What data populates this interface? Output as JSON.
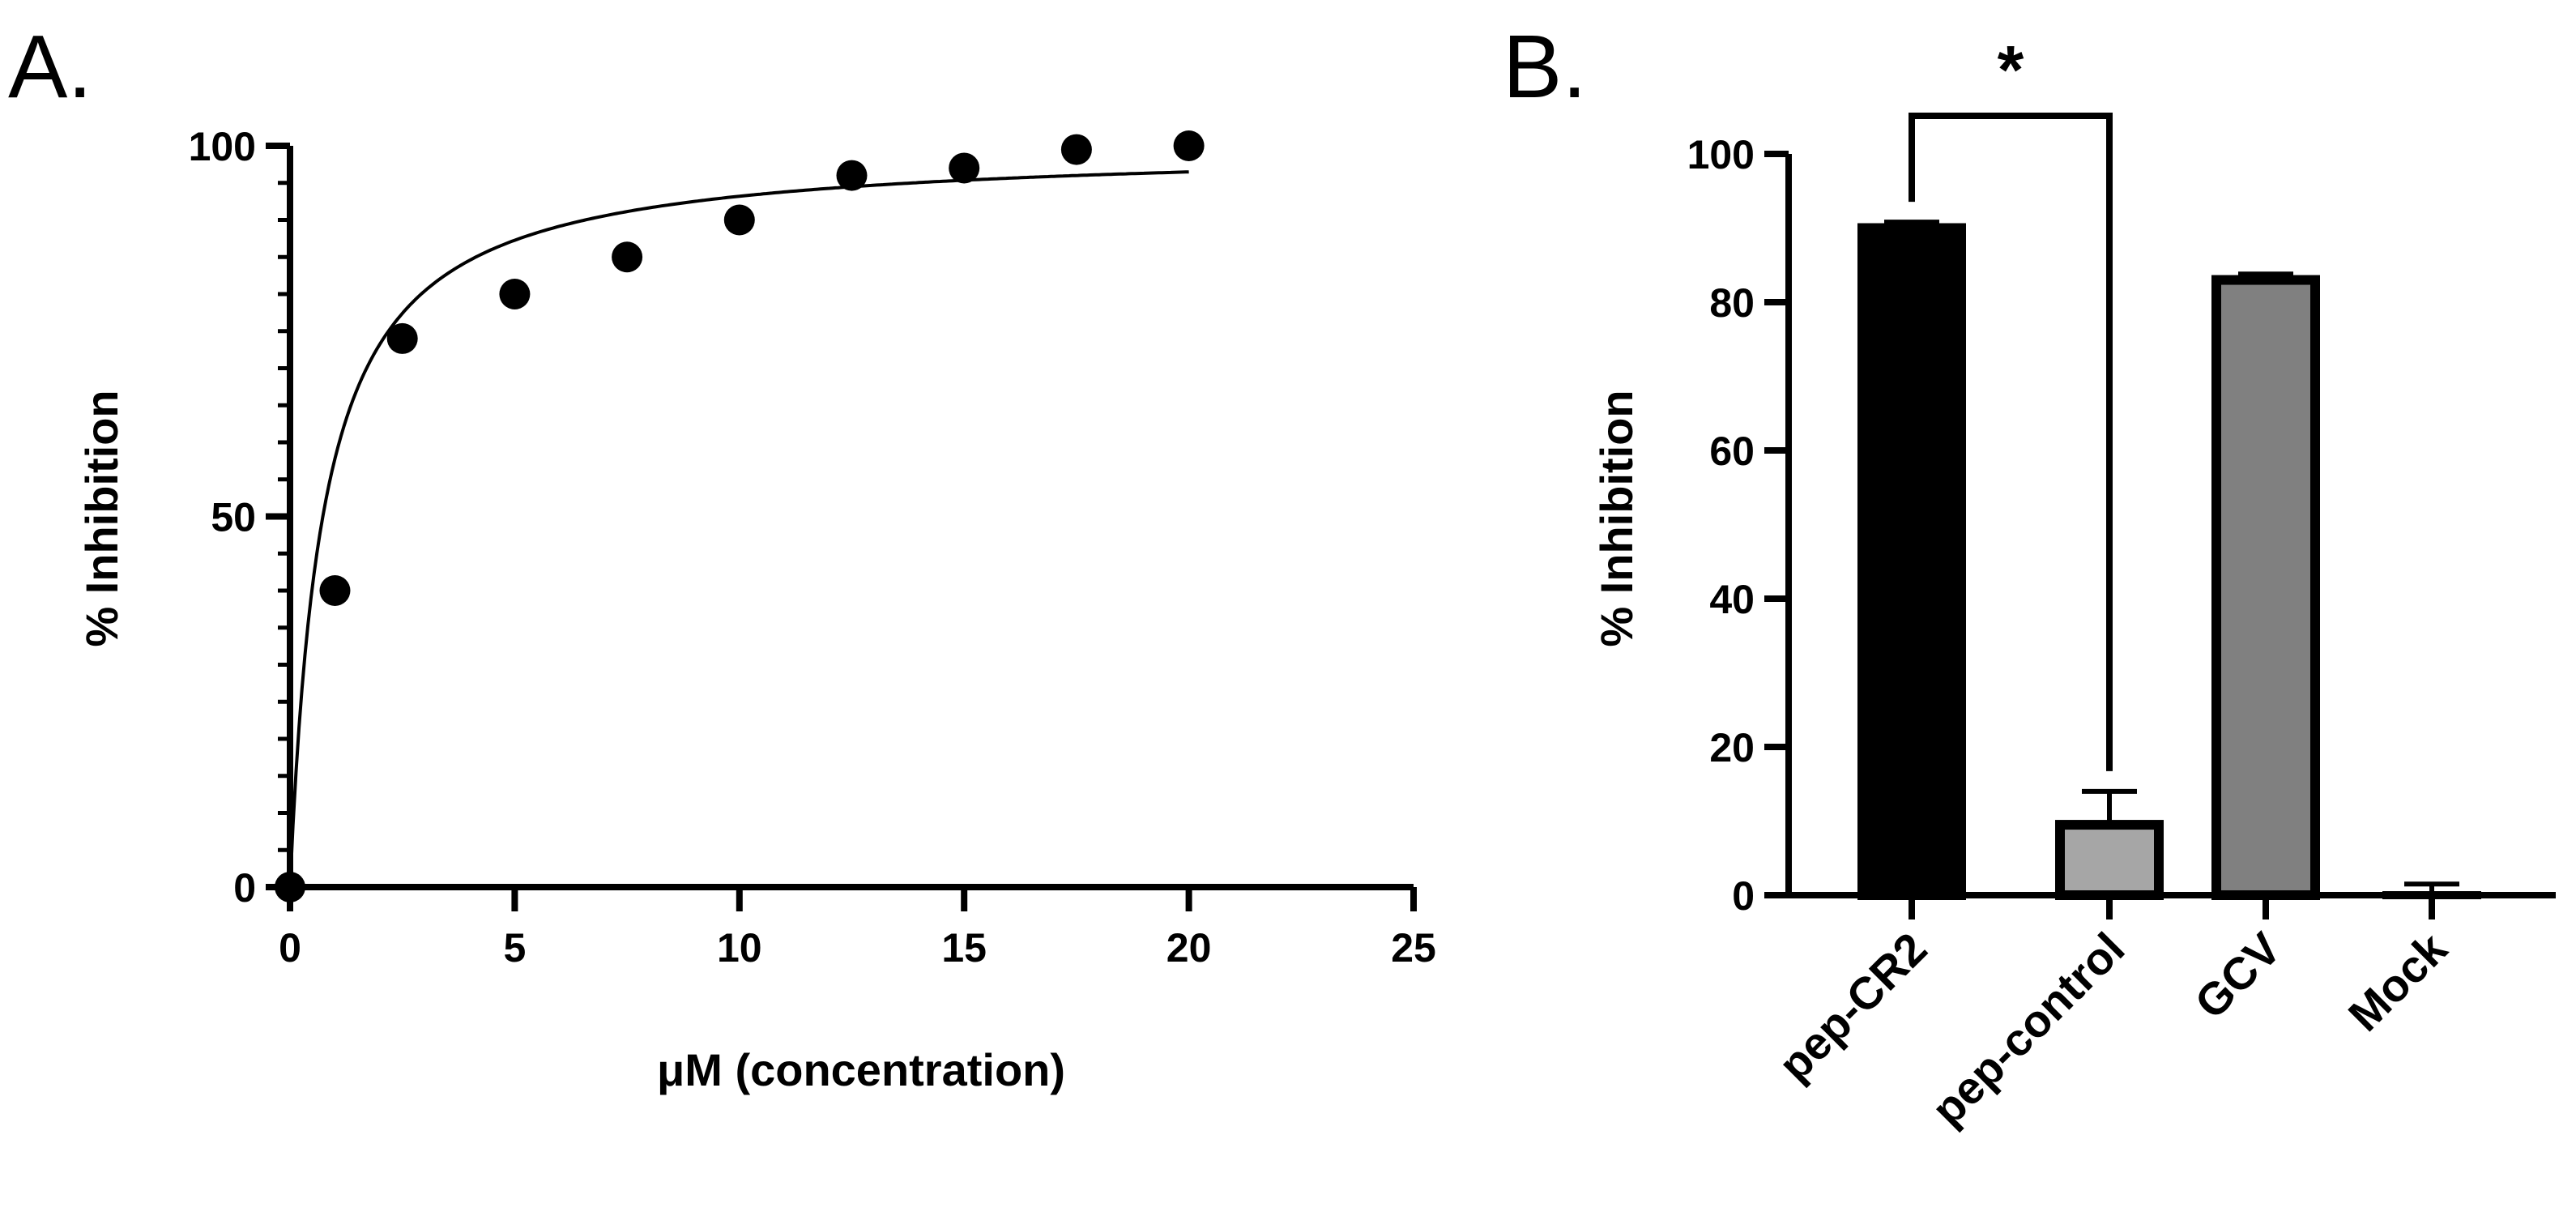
{
  "panels": {
    "a": {
      "letter": "A."
    },
    "b": {
      "letter": "B."
    }
  },
  "chart_data": [
    {
      "type": "scatter",
      "title": "",
      "xlabel": "μM (concentration)",
      "ylabel": "% Inhibition",
      "xlim": [
        0,
        25
      ],
      "ylim": [
        0,
        100
      ],
      "xticks": [
        0,
        5,
        10,
        15,
        20,
        25
      ],
      "yticks": [
        0,
        50,
        100
      ],
      "y_minor_step": 5,
      "grid": false,
      "legend": "none",
      "series": [
        {
          "name": "data points",
          "x": [
            0,
            1,
            2.5,
            5,
            7.5,
            10,
            12.5,
            15,
            17.5,
            20
          ],
          "y": [
            0,
            40,
            74,
            80,
            85,
            90,
            96,
            97,
            99.5,
            100
          ]
        }
      ],
      "fit": {
        "model": "hyperbolic",
        "ymax": 100,
        "k": 0.73,
        "x_range": [
          0,
          20
        ]
      },
      "colors": {
        "marker": "#000000",
        "line": "#000000"
      }
    },
    {
      "type": "bar",
      "title": "",
      "xlabel": "",
      "ylabel": "% Inhibition",
      "ylim": [
        0,
        100
      ],
      "yticks": [
        0,
        20,
        40,
        60,
        80,
        100
      ],
      "grid": false,
      "legend": "none",
      "categories": [
        "pep-CR2",
        "pep-control",
        "GCV",
        "Mock"
      ],
      "values": [
        90,
        9.5,
        83,
        0
      ],
      "errors": [
        0.8,
        4.5,
        0.8,
        1.5
      ],
      "colors": [
        "#000000",
        "#a6a6a6",
        "#808080",
        "#ffffff"
      ],
      "significance": {
        "label": "*",
        "between": [
          0,
          1
        ]
      }
    }
  ]
}
